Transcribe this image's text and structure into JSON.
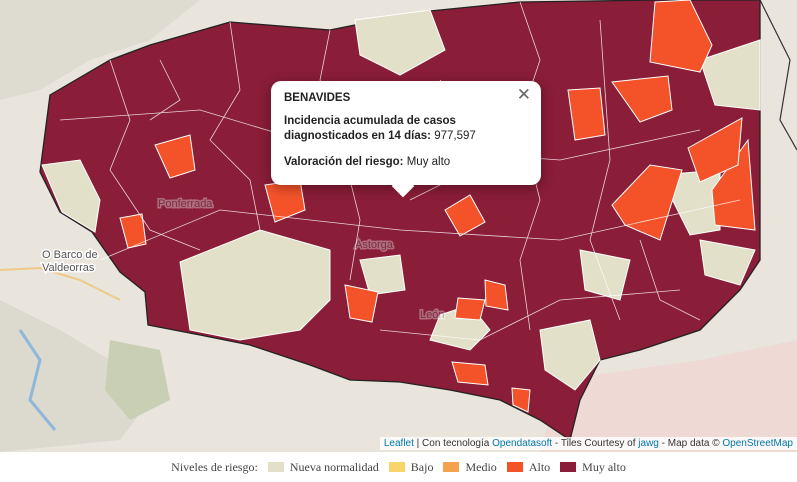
{
  "popup": {
    "title": "BENAVIDES",
    "metric_label": "Incidencia acumulada de casos diagnosticados en 14 días:",
    "metric_value": "977,597",
    "risk_label": "Valoración del riesgo:",
    "risk_value": "Muy alto"
  },
  "map_labels": [
    {
      "lines": [
        "O Barco de",
        "Valdeorras"
      ]
    },
    {
      "lines": [
        "Ponferrada"
      ]
    },
    {
      "lines": [
        "Astorga"
      ]
    },
    {
      "lines": [
        "León"
      ]
    }
  ],
  "attribution": [
    {
      "text": "Leaflet",
      "link": true
    },
    {
      "text": " | Con tecnología ",
      "link": false
    },
    {
      "text": "Opendatasoft",
      "link": true
    },
    {
      "text": " - Tiles Courtesy of ",
      "link": false
    },
    {
      "text": "jawg",
      "link": true
    },
    {
      "text": " - Map data © ",
      "link": false
    },
    {
      "text": "OpenStreetMap",
      "link": true
    }
  ],
  "legend": {
    "title": "Niveles de riesgo:",
    "items": [
      {
        "label": "Nueva normalidad",
        "color": "#e2e0c8"
      },
      {
        "label": "Bajo",
        "color": "#f7d56a"
      },
      {
        "label": "Medio",
        "color": "#f5a24e"
      },
      {
        "label": "Alto",
        "color": "#f4532a"
      },
      {
        "label": "Muy alto",
        "color": "#8a1d38"
      }
    ]
  }
}
